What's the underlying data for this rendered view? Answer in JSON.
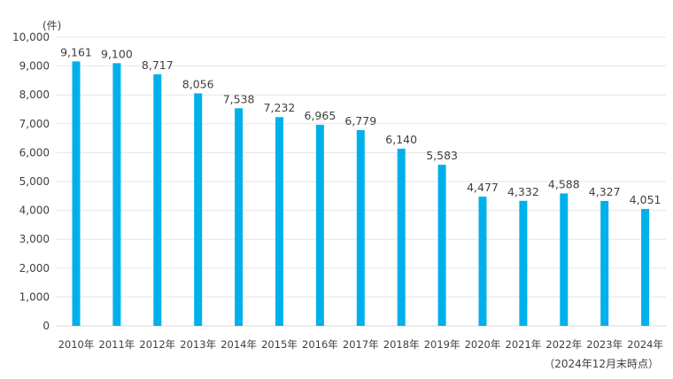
{
  "chart_data": {
    "type": "bar",
    "title": "",
    "xlabel": "",
    "ylabel": "",
    "unit_label": "(件)",
    "note": "（2024年12月末時点）",
    "categories": [
      "2010年",
      "2011年",
      "2012年",
      "2013年",
      "2014年",
      "2015年",
      "2016年",
      "2017年",
      "2018年",
      "2019年",
      "2020年",
      "2021年",
      "2022年",
      "2023年",
      "2024年"
    ],
    "values": [
      9161,
      9100,
      8717,
      8056,
      7538,
      7232,
      6965,
      6779,
      6140,
      5583,
      4477,
      4332,
      4588,
      4327,
      4051
    ],
    "value_labels": [
      "9,161",
      "9,100",
      "8,717",
      "8,056",
      "7,538",
      "7,232",
      "6,965",
      "6,779",
      "6,140",
      "5,583",
      "4,477",
      "4,332",
      "4,588",
      "4,327",
      "4,051"
    ],
    "ylim": [
      0,
      10000
    ],
    "yticks": [
      0,
      1000,
      2000,
      3000,
      4000,
      5000,
      6000,
      7000,
      8000,
      9000,
      10000
    ],
    "ytick_labels": [
      "0",
      "1,000",
      "2,000",
      "3,000",
      "4,000",
      "5,000",
      "6,000",
      "7,000",
      "8,000",
      "9,000",
      "10,000"
    ],
    "grid": true,
    "bar_color": "#00B0EA",
    "grid_color": "#E6E6E6"
  }
}
